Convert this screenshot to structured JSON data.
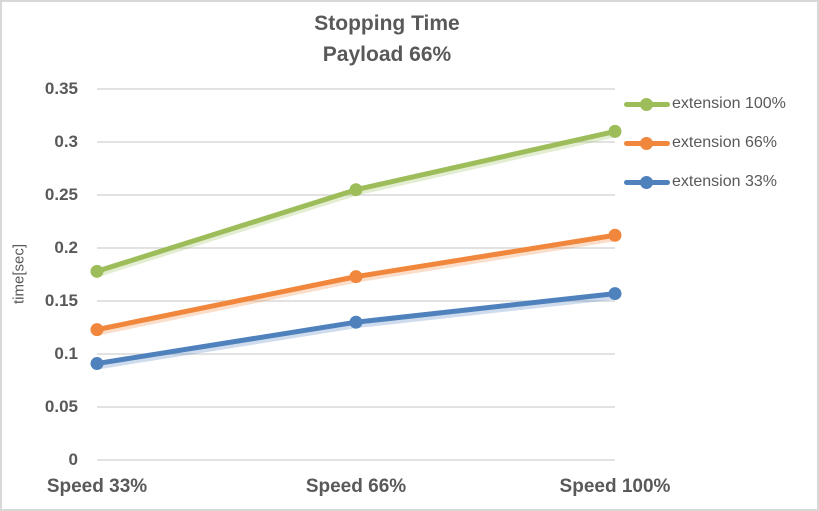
{
  "chart_data": {
    "type": "line",
    "title": "Stopping Time",
    "subtitle": "Payload 66%",
    "categories": [
      "Speed 33%",
      "Speed 66%",
      "Speed 100%"
    ],
    "series": [
      {
        "name": "extension 100%",
        "color": "#9cbd5a",
        "values": [
          0.178,
          0.255,
          0.31
        ]
      },
      {
        "name": "extension 66%",
        "color": "#f0873c",
        "values": [
          0.123,
          0.173,
          0.212
        ]
      },
      {
        "name": "extension 33%",
        "color": "#4f81bd",
        "values": [
          0.091,
          0.13,
          0.157
        ]
      }
    ],
    "xlabel": "",
    "ylabel": "time[sec]",
    "ylim": [
      0,
      0.35
    ],
    "ytick_step": 0.05,
    "grid": "horizontal-only",
    "gridline_color": "#d9d9d9",
    "text_color": "#595959",
    "legend_position": "right",
    "marker": "circle"
  }
}
